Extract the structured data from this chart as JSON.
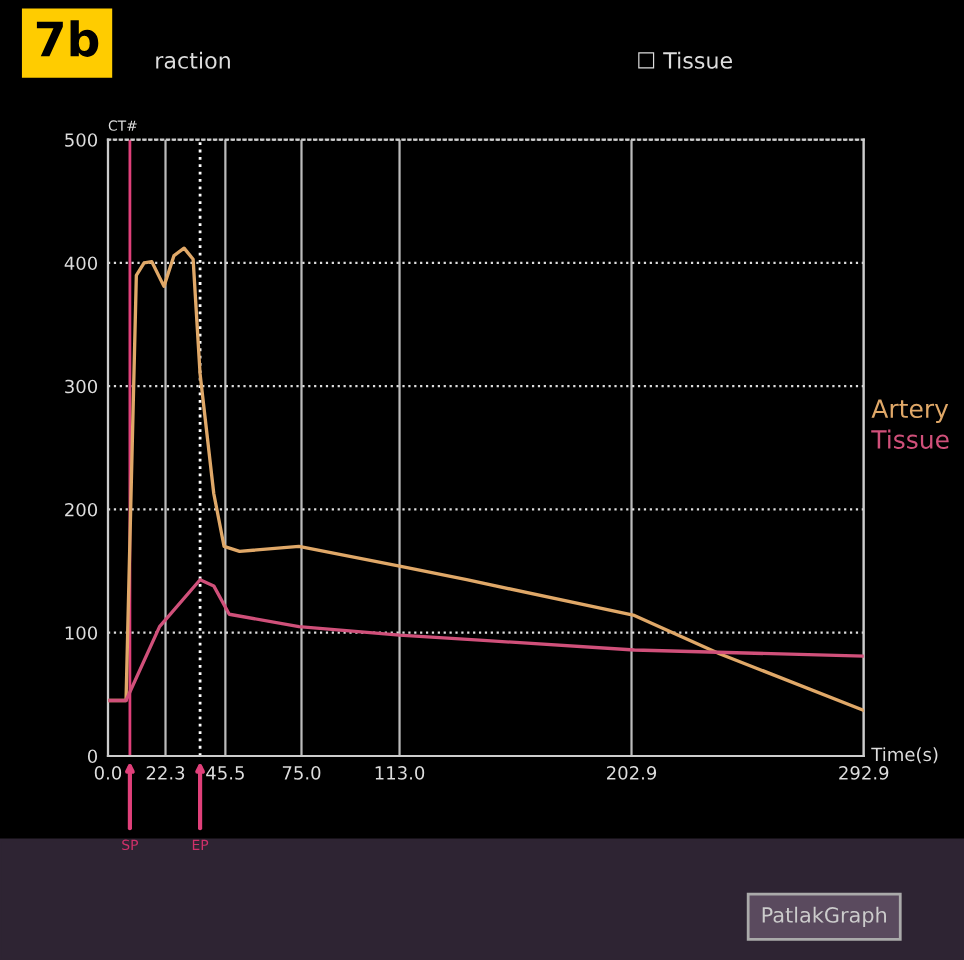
{
  "chart_data": {
    "type": "line",
    "title": "raction",
    "ylabel": "CT#",
    "xlabel": "Time(s)",
    "annotations": [
      "7b",
      "☐ Tissue",
      "PatlakGraph"
    ],
    "series": [
      {
        "name": "Artery",
        "color": "#e0a868",
        "x": [
          0.8,
          7,
          11,
          14,
          17,
          21.7,
          25.6,
          29.5,
          33,
          35.7,
          41,
          45,
          51,
          74,
          113,
          139,
          204,
          237,
          292.9
        ],
        "values": [
          45,
          45,
          390,
          400,
          401,
          381,
          406,
          412,
          403,
          310,
          213,
          170,
          166,
          170,
          154,
          143,
          114,
          83,
          37
        ]
      },
      {
        "name": "Tissue",
        "color": "#d0507a",
        "x": [
          0.8,
          7,
          20,
          35.7,
          41,
          47,
          74,
          113,
          144,
          204,
          292.9
        ],
        "values": [
          45,
          45,
          105,
          143,
          138,
          115,
          105,
          98,
          94,
          86,
          81
        ]
      }
    ],
    "xlim": [
      0,
      292.9
    ],
    "xticks": [
      {
        "value": 0,
        "label": "0.0"
      },
      22.3,
      45.5,
      {
        "value": 75,
        "label": "75.0"
      },
      {
        "value": 113,
        "label": "113.0"
      },
      202.9,
      292.9
    ],
    "ylim": [
      0,
      500
    ],
    "yticks": [
      0,
      100,
      200,
      300,
      400,
      500
    ],
    "ref_lines": [
      {
        "axis": "x",
        "value": 8.5,
        "label": "SP",
        "color": "#e0407a",
        "line_style": "solid"
      },
      {
        "axis": "x",
        "value": 35.7,
        "label": "EP",
        "color": "#ffffff",
        "line_style": "dotted"
      }
    ],
    "grid": true,
    "legend": "right",
    "line_style": "solid",
    "marker": "none"
  }
}
